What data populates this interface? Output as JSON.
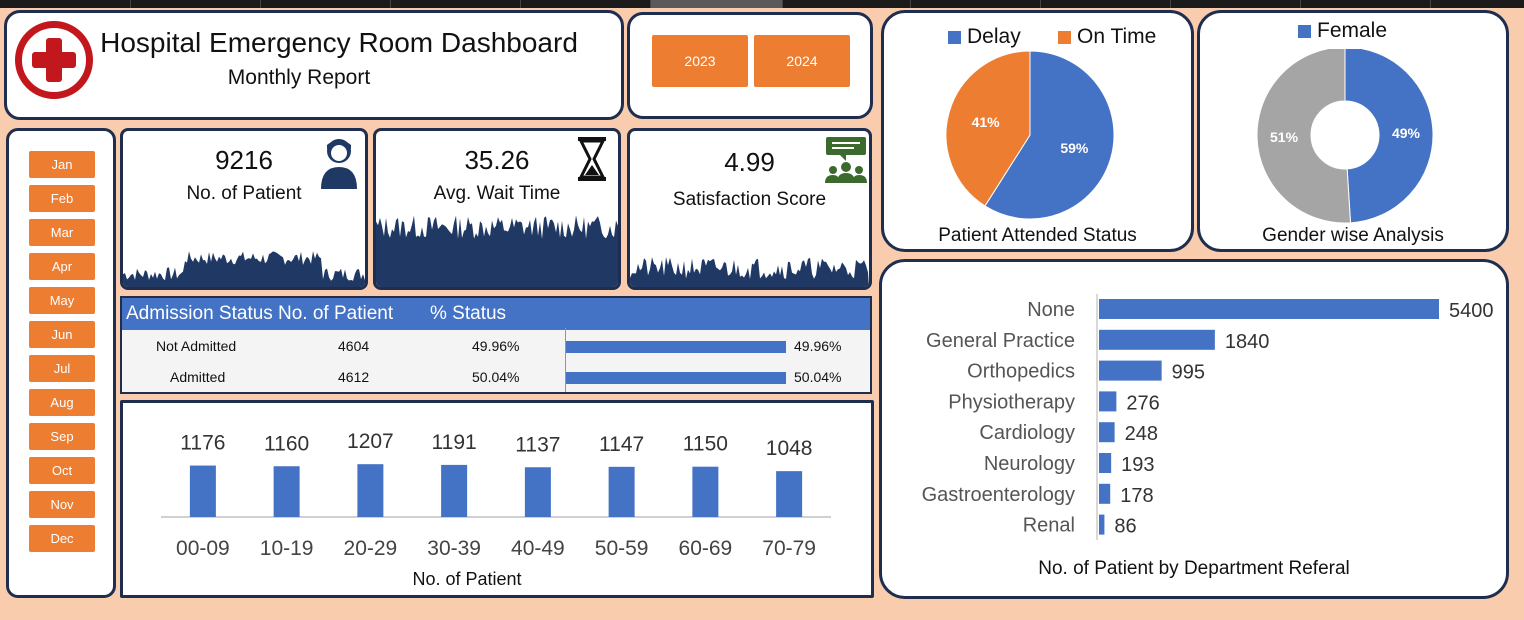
{
  "header": {
    "title": "Hospital Emergency Room Dashboard",
    "subtitle": "Monthly Report"
  },
  "years": [
    "2023",
    "2024"
  ],
  "months": [
    "Jan",
    "Feb",
    "Mar",
    "Apr",
    "May",
    "Jun",
    "Jul",
    "Aug",
    "Sep",
    "Oct",
    "Nov",
    "Dec"
  ],
  "kpis": {
    "patients": {
      "value": "9216",
      "label": "No. of Patient",
      "icon": "patient-icon"
    },
    "wait": {
      "value": "35.26",
      "label": "Avg. Wait Time",
      "icon": "hourglass-icon"
    },
    "satisfaction": {
      "value": "4.99",
      "label": "Satisfaction Score",
      "icon": "feedback-icon"
    }
  },
  "admission": {
    "headers": [
      "Admission Status",
      "No. of Patient",
      "% Status"
    ],
    "rows": [
      {
        "status": "Not Admitted",
        "count": "4604",
        "pct": "49.96%",
        "fraction": 0.4996
      },
      {
        "status": "Admitted",
        "count": "4612",
        "pct": "50.04%",
        "fraction": 0.5004
      }
    ]
  },
  "colors": {
    "blue": "#4472c4",
    "orange": "#ed7d31",
    "grey": "#a5a5a5",
    "navy": "#1f3864",
    "accent_orange": "#ed7d31"
  },
  "chart_data": [
    {
      "type": "pie",
      "title": "Patient Attended Status",
      "legend": [
        "Delay",
        "On Time"
      ],
      "legend_position": "top",
      "slices": [
        {
          "name": "Delay",
          "value": 59,
          "label": "59%",
          "color": "#4472c4"
        },
        {
          "name": "On Time",
          "value": 41,
          "label": "41%",
          "color": "#ed7d31"
        }
      ]
    },
    {
      "type": "pie",
      "title": "Gender wise Analysis",
      "legend": [
        "Female"
      ],
      "legend_position": "top",
      "donut": true,
      "slices": [
        {
          "name": "Female",
          "value": 49,
          "label": "49%",
          "color": "#4472c4"
        },
        {
          "name": "",
          "value": 51,
          "label": "51%",
          "color": "#a5a5a5"
        }
      ]
    },
    {
      "type": "bar",
      "orientation": "horizontal",
      "title": "No. of Patient by Department Referal",
      "categories": [
        "None",
        "General Practice",
        "Orthopedics",
        "Physiotherapy",
        "Cardiology",
        "Neurology",
        "Gastroenterology",
        "Renal"
      ],
      "values": [
        5400,
        1840,
        995,
        276,
        248,
        193,
        178,
        86
      ]
    },
    {
      "type": "bar",
      "title": "No. of Patient",
      "categories": [
        "00-09",
        "10-19",
        "20-29",
        "30-39",
        "40-49",
        "50-59",
        "60-69",
        "70-79"
      ],
      "values": [
        1176,
        1160,
        1207,
        1191,
        1137,
        1147,
        1150,
        1048
      ]
    }
  ]
}
